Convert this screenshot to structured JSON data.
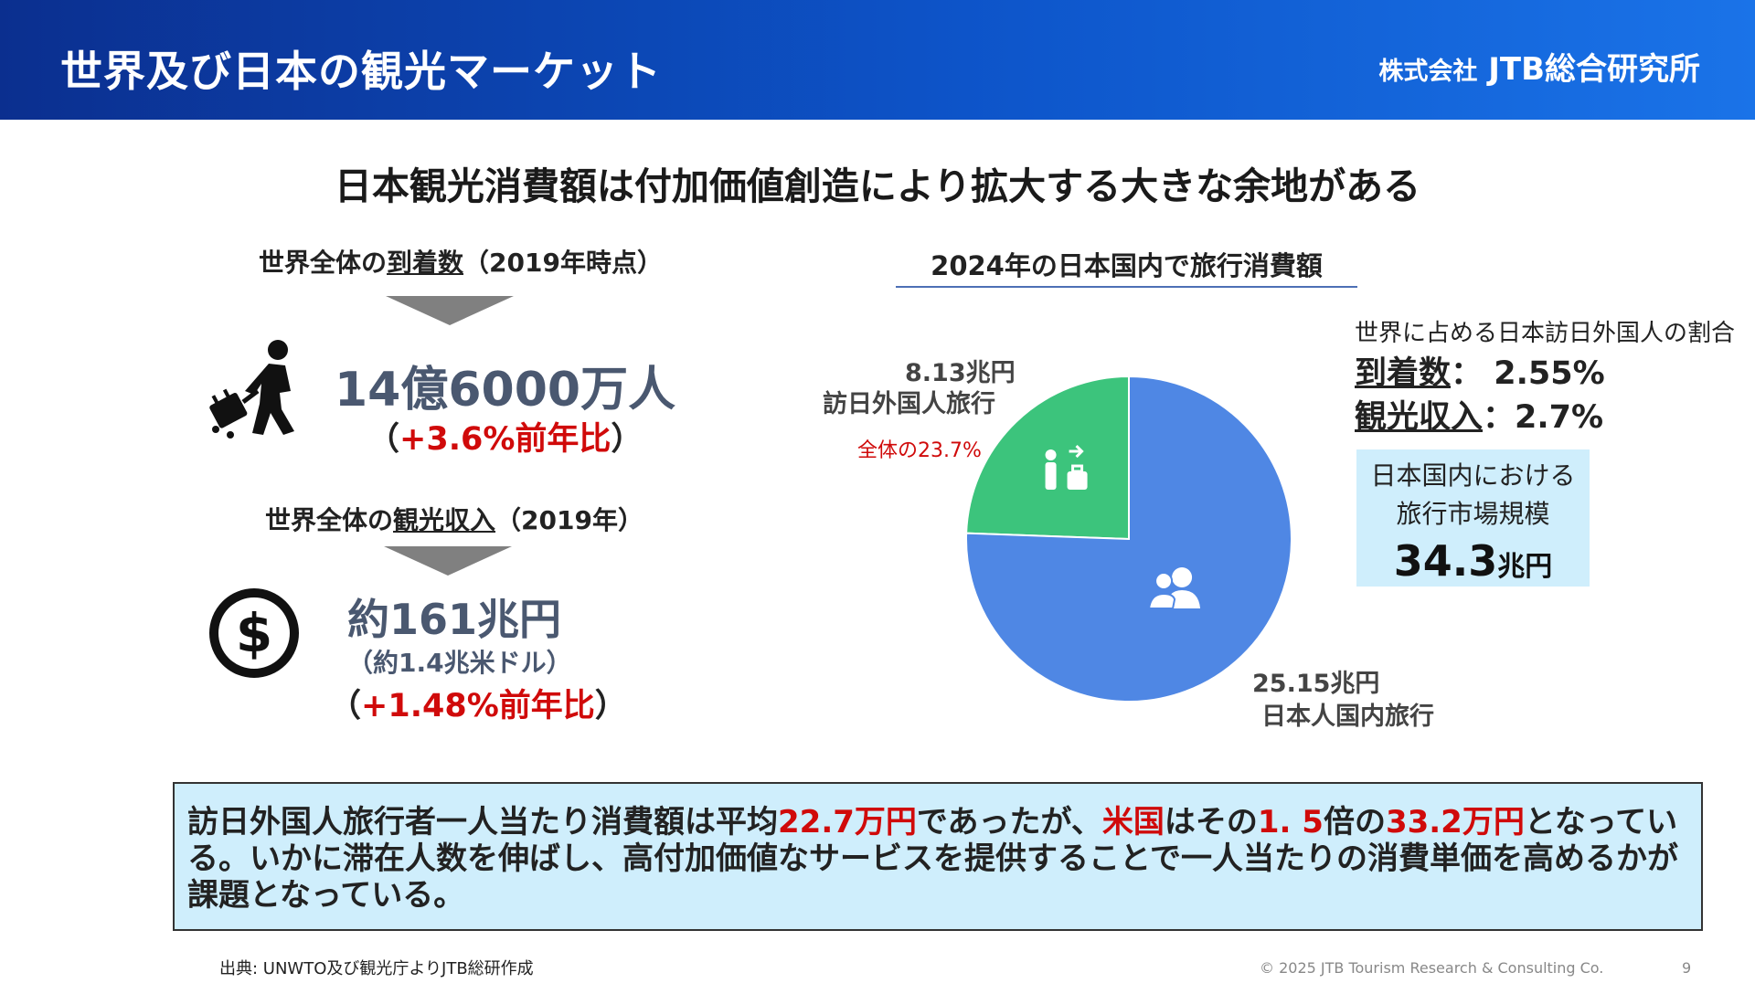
{
  "header": {
    "title": "世界及び日本の観光マーケット",
    "brand_prefix": "株式会社",
    "brand_name": "JTB総合研究所"
  },
  "headline": "日本観光消費額は付加価値創造により拡大する大きな余地がある",
  "arrivals": {
    "label_pre": "世界全体の",
    "label_key": "到着数",
    "label_post": "（2019年時点）",
    "value": "14億6000万人",
    "delta_open": "（",
    "delta": "+3.6%前年比",
    "delta_close": "）",
    "icon": "traveler-icon"
  },
  "receipts": {
    "label_pre": "世界全体の",
    "label_key": "観光収入",
    "label_post": "（2019年）",
    "value": "約161兆円",
    "sub": "（約1.4兆米ドル）",
    "delta_open": "（",
    "delta": "+1.48%前年比",
    "delta_close": "）",
    "icon": "dollar-icon"
  },
  "chart_data": {
    "type": "pie",
    "title": "2024年の日本国内で旅行消費額",
    "units": "兆円",
    "slices": [
      {
        "label": "訪日外国人旅行",
        "value": 8.13,
        "value_label": "8.13兆円",
        "pct_label": "全体の23.7%",
        "color": "#3cc47c",
        "icon": "inbound-traveler-icon"
      },
      {
        "label": "日本人国内旅行",
        "value": 25.15,
        "value_label": "25.15兆円",
        "color": "#4f87e4",
        "icon": "people-icon"
      }
    ]
  },
  "share": {
    "heading": "世界に占める日本訪日外国人の割合",
    "arrivals_key": "到着数",
    "arrivals_sep": "：",
    "arrivals_value": " 2.55%",
    "receipts_key": "観光収入",
    "receipts_sep": "：",
    "receipts_value": "2.7%"
  },
  "market": {
    "line1": "日本国内における",
    "line2": "旅行市場規模",
    "value": "34.3",
    "unit": "兆円"
  },
  "note": {
    "parts": [
      {
        "text": "訪日外国人旅行者一人当たり消費額は平均",
        "red": false
      },
      {
        "text": "22.7万円",
        "red": true
      },
      {
        "text": "であったが、",
        "red": false
      },
      {
        "text": "米国",
        "red": true
      },
      {
        "text": "はその",
        "red": false
      },
      {
        "text": "1. 5",
        "red": true
      },
      {
        "text": "倍の",
        "red": false
      },
      {
        "text": "33.2万円",
        "red": true
      },
      {
        "text": "となっている。いかに滞在人数を伸ばし、高付加価値なサービスを提供することで一人当たりの消費単価を高めるかが課題となっている。",
        "red": false
      }
    ]
  },
  "footer": {
    "source": "出典: UNWTO及び観光庁よりJTB総研作成",
    "copyright": "© 2025 JTB Tourism Research & Consulting Co.",
    "page": "9"
  },
  "colors": {
    "accent_red": "#d00a0a",
    "header_blue": "#0d54c9"
  }
}
